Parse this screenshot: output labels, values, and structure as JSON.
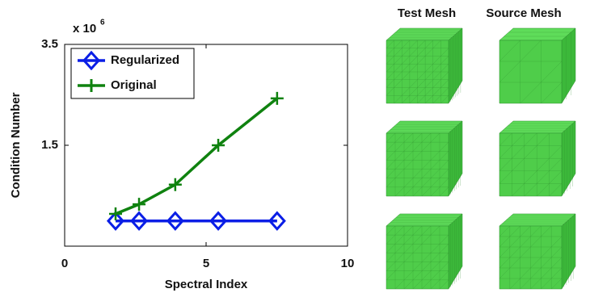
{
  "chart_data": {
    "type": "line",
    "xlabel": "Spectral Index",
    "ylabel": "Condition Number",
    "y_multiplier": {
      "base": "x 10",
      "exponent": "6"
    },
    "xlim": [
      0,
      10
    ],
    "xticks": [
      0,
      5,
      10
    ],
    "ylim": [
      -0.5,
      3.5
    ],
    "yticks": [
      1.5,
      3.5
    ],
    "grid": false,
    "legend": "upper left",
    "series": [
      {
        "name": "Regularized",
        "color": "#0a1ee6",
        "marker": "diamond",
        "x": [
          1.8,
          2.63,
          3.91,
          5.43,
          7.51
        ],
        "values": [
          0.0,
          0.0,
          0.0,
          0.0,
          0.0
        ]
      },
      {
        "name": "Original",
        "color": "#0f820f",
        "marker": "plus",
        "x": [
          1.8,
          2.63,
          3.91,
          5.43,
          7.51
        ],
        "values": [
          0.14,
          0.33,
          0.72,
          1.5,
          2.43
        ]
      }
    ]
  },
  "mesh_panel": {
    "columns": [
      "Test Mesh",
      "Source Mesh"
    ]
  }
}
